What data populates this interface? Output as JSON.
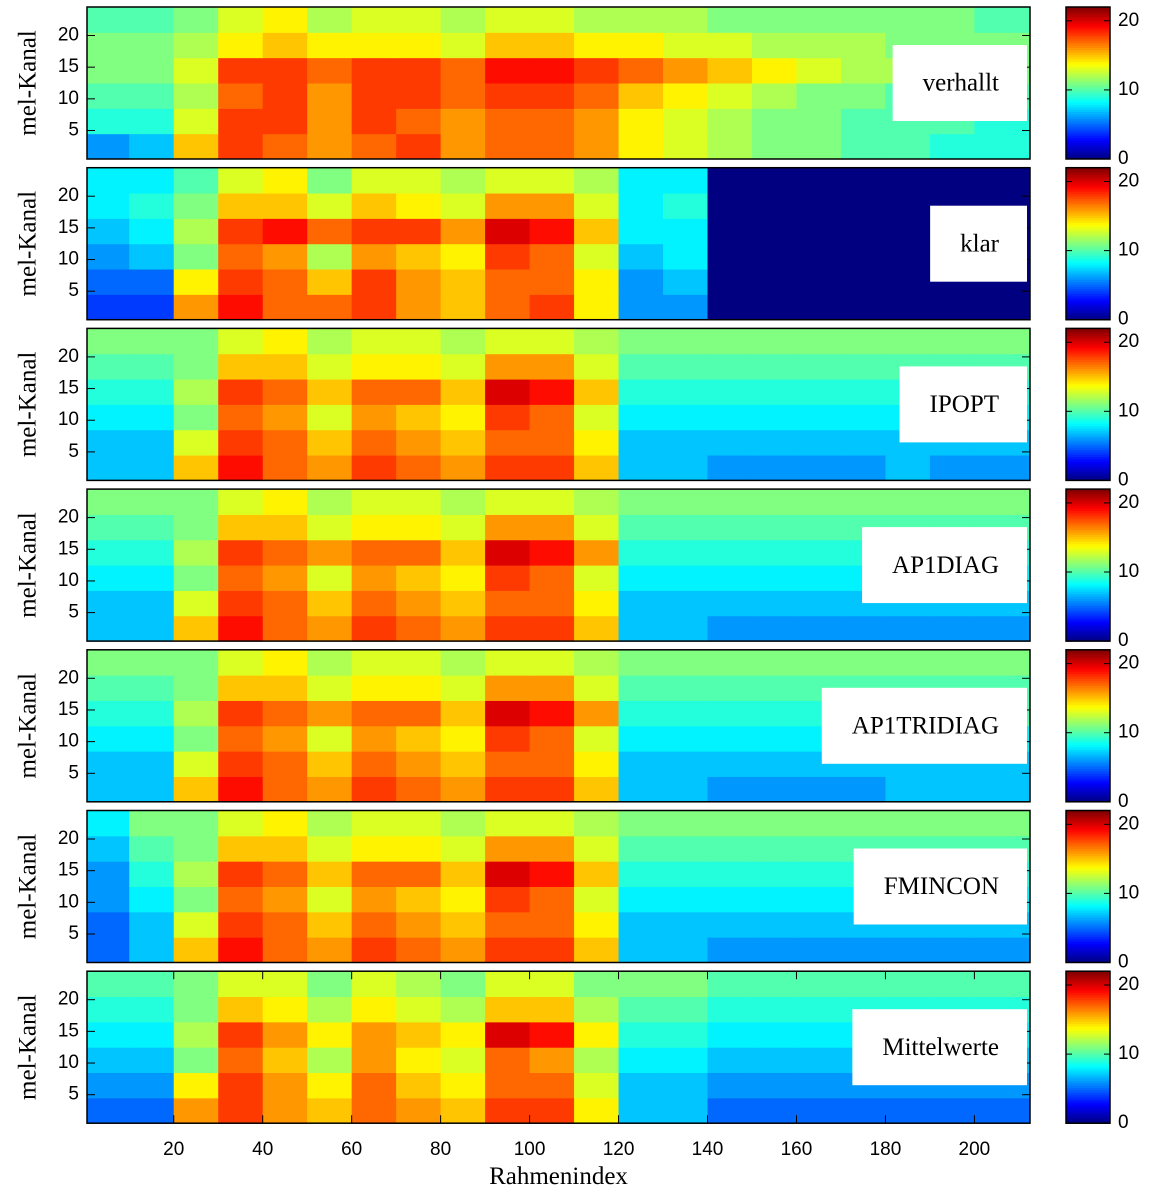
{
  "chart_data": [
    {
      "type": "heatmap",
      "annotation": "verhallt",
      "ylabel": "mel-Kanal",
      "xlim": [
        0.5,
        212.5
      ],
      "ylim": [
        0.5,
        24.5
      ],
      "yticks": [
        5,
        10,
        15,
        20
      ],
      "colormap": "jet",
      "clim": [
        0,
        22
      ],
      "colorbar_ticks": [
        0,
        10,
        20
      ],
      "x_edges": [
        0.5,
        10,
        20,
        30,
        40,
        50,
        60,
        70,
        80,
        90,
        100,
        110,
        120,
        130,
        140,
        150,
        160,
        170,
        180,
        190,
        200,
        212.5
      ],
      "y_edges": [
        0.5,
        4.5,
        8.5,
        12.5,
        16.5,
        20.5,
        24.5
      ],
      "z": [
        [
          6,
          7,
          15,
          18,
          17,
          16,
          17,
          18,
          16,
          17,
          17,
          16,
          14,
          13,
          12,
          11,
          11,
          10,
          10,
          9,
          9
        ],
        [
          9,
          9,
          13,
          18,
          18,
          16,
          18,
          17,
          16,
          17,
          17,
          16,
          14,
          13,
          12,
          11,
          11,
          10,
          10,
          10,
          9
        ],
        [
          10,
          10,
          12,
          17,
          18,
          16,
          18,
          18,
          17,
          18,
          18,
          17,
          15,
          14,
          13,
          12,
          11,
          11,
          10,
          10,
          10
        ],
        [
          11,
          11,
          13,
          18,
          18,
          17,
          18,
          18,
          17,
          19,
          19,
          18,
          17,
          16,
          15,
          14,
          13,
          12,
          12,
          11,
          11
        ],
        [
          11,
          11,
          12,
          14,
          15,
          14,
          14,
          14,
          13,
          15,
          15,
          14,
          14,
          13,
          13,
          12,
          12,
          12,
          11,
          11,
          11
        ],
        [
          10,
          10,
          11,
          13,
          14,
          12,
          13,
          13,
          12,
          13,
          13,
          12,
          12,
          12,
          11,
          11,
          11,
          11,
          11,
          11,
          10
        ]
      ]
    },
    {
      "type": "heatmap",
      "annotation": "klar",
      "ylabel": "mel-Kanal",
      "xlim": [
        0.5,
        212.5
      ],
      "ylim": [
        0.5,
        24.5
      ],
      "yticks": [
        5,
        10,
        15,
        20
      ],
      "colormap": "jet",
      "clim": [
        0,
        22
      ],
      "colorbar_ticks": [
        0,
        10,
        20
      ],
      "x_edges": [
        0.5,
        10,
        20,
        30,
        40,
        50,
        60,
        70,
        80,
        90,
        100,
        110,
        120,
        130,
        140,
        150,
        160,
        170,
        180,
        190,
        200,
        212.5
      ],
      "y_edges": [
        0.5,
        4.5,
        8.5,
        12.5,
        16.5,
        20.5,
        24.5
      ],
      "z": [
        [
          4,
          4,
          16,
          19,
          17,
          17,
          18,
          16,
          15,
          17,
          18,
          14,
          6,
          6,
          0,
          0,
          0,
          0,
          0,
          0,
          0
        ],
        [
          5,
          5,
          14,
          18,
          17,
          15,
          18,
          16,
          15,
          17,
          17,
          14,
          6,
          7,
          0,
          0,
          0,
          0,
          0,
          0,
          0
        ],
        [
          6,
          7,
          11,
          17,
          16,
          12,
          16,
          15,
          14,
          18,
          17,
          13,
          7,
          8,
          0,
          0,
          0,
          0,
          0,
          0,
          0
        ],
        [
          7,
          8,
          12,
          18,
          19,
          17,
          18,
          18,
          16,
          20,
          19,
          15,
          8,
          8,
          0,
          0,
          0,
          0,
          0,
          0,
          0
        ],
        [
          8,
          9,
          11,
          15,
          15,
          13,
          15,
          14,
          13,
          16,
          16,
          13,
          8,
          9,
          0,
          0,
          0,
          0,
          0,
          0,
          0
        ],
        [
          8,
          8,
          10,
          13,
          14,
          11,
          13,
          13,
          12,
          13,
          13,
          12,
          8,
          8,
          0,
          0,
          0,
          0,
          0,
          0,
          0
        ]
      ]
    },
    {
      "type": "heatmap",
      "annotation": "IPOPT",
      "ylabel": "mel-Kanal",
      "xlim": [
        0.5,
        212.5
      ],
      "ylim": [
        0.5,
        24.5
      ],
      "yticks": [
        5,
        10,
        15,
        20
      ],
      "colormap": "jet",
      "clim": [
        0,
        22
      ],
      "colorbar_ticks": [
        0,
        10,
        20
      ],
      "x_edges": [
        0.5,
        10,
        20,
        30,
        40,
        50,
        60,
        70,
        80,
        90,
        100,
        110,
        120,
        130,
        140,
        150,
        160,
        170,
        180,
        190,
        200,
        212.5
      ],
      "y_edges": [
        0.5,
        4.5,
        8.5,
        12.5,
        16.5,
        20.5,
        24.5
      ],
      "z": [
        [
          7,
          7,
          15,
          19,
          17,
          16,
          18,
          17,
          16,
          18,
          18,
          15,
          7,
          7,
          6,
          6,
          6,
          6,
          7,
          6,
          6
        ],
        [
          7,
          7,
          13,
          18,
          17,
          15,
          17,
          16,
          15,
          17,
          17,
          14,
          7,
          7,
          7,
          7,
          7,
          7,
          7,
          7,
          7
        ],
        [
          8,
          8,
          11,
          17,
          16,
          13,
          16,
          15,
          14,
          18,
          17,
          13,
          8,
          8,
          8,
          8,
          8,
          8,
          8,
          8,
          8
        ],
        [
          9,
          9,
          12,
          18,
          17,
          15,
          17,
          17,
          15,
          20,
          19,
          15,
          9,
          9,
          9,
          9,
          9,
          9,
          9,
          9,
          9
        ],
        [
          10,
          10,
          11,
          15,
          15,
          13,
          14,
          14,
          13,
          16,
          16,
          13,
          10,
          10,
          10,
          10,
          10,
          10,
          10,
          10,
          10
        ],
        [
          11,
          11,
          11,
          13,
          14,
          12,
          13,
          13,
          12,
          13,
          13,
          12,
          11,
          11,
          11,
          11,
          11,
          11,
          11,
          11,
          11
        ]
      ]
    },
    {
      "type": "heatmap",
      "annotation": "AP1DIAG",
      "ylabel": "mel-Kanal",
      "xlim": [
        0.5,
        212.5
      ],
      "ylim": [
        0.5,
        24.5
      ],
      "yticks": [
        5,
        10,
        15,
        20
      ],
      "colormap": "jet",
      "clim": [
        0,
        22
      ],
      "colorbar_ticks": [
        0,
        10,
        20
      ],
      "x_edges": [
        0.5,
        10,
        20,
        30,
        40,
        50,
        60,
        70,
        80,
        90,
        100,
        110,
        120,
        130,
        140,
        150,
        160,
        170,
        180,
        190,
        200,
        212.5
      ],
      "y_edges": [
        0.5,
        4.5,
        8.5,
        12.5,
        16.5,
        20.5,
        24.5
      ],
      "z": [
        [
          7,
          7,
          15,
          19,
          17,
          16,
          18,
          17,
          16,
          18,
          18,
          15,
          7,
          7,
          6,
          6,
          6,
          6,
          6,
          6,
          6
        ],
        [
          7,
          7,
          13,
          18,
          17,
          15,
          17,
          16,
          15,
          17,
          17,
          14,
          7,
          7,
          7,
          7,
          7,
          7,
          7,
          7,
          7
        ],
        [
          8,
          8,
          11,
          17,
          16,
          13,
          16,
          15,
          14,
          18,
          17,
          13,
          8,
          8,
          8,
          8,
          8,
          8,
          8,
          8,
          8
        ],
        [
          9,
          9,
          12,
          18,
          17,
          16,
          17,
          17,
          15,
          20,
          19,
          16,
          9,
          9,
          9,
          9,
          9,
          9,
          9,
          9,
          9
        ],
        [
          10,
          10,
          11,
          15,
          15,
          13,
          14,
          14,
          13,
          16,
          16,
          13,
          10,
          10,
          10,
          10,
          10,
          10,
          10,
          10,
          10
        ],
        [
          11,
          11,
          11,
          13,
          14,
          12,
          13,
          13,
          12,
          13,
          13,
          12,
          11,
          11,
          11,
          11,
          11,
          11,
          11,
          11,
          11
        ]
      ]
    },
    {
      "type": "heatmap",
      "annotation": "AP1TRIDIAG",
      "ylabel": "mel-Kanal",
      "xlim": [
        0.5,
        212.5
      ],
      "ylim": [
        0.5,
        24.5
      ],
      "yticks": [
        5,
        10,
        15,
        20
      ],
      "colormap": "jet",
      "clim": [
        0,
        22
      ],
      "colorbar_ticks": [
        0,
        10,
        20
      ],
      "x_edges": [
        0.5,
        10,
        20,
        30,
        40,
        50,
        60,
        70,
        80,
        90,
        100,
        110,
        120,
        130,
        140,
        150,
        160,
        170,
        180,
        190,
        200,
        212.5
      ],
      "y_edges": [
        0.5,
        4.5,
        8.5,
        12.5,
        16.5,
        20.5,
        24.5
      ],
      "z": [
        [
          7,
          7,
          15,
          19,
          17,
          16,
          18,
          17,
          16,
          18,
          18,
          15,
          7,
          7,
          6,
          6,
          6,
          6,
          7,
          7,
          7
        ],
        [
          7,
          7,
          13,
          18,
          17,
          15,
          17,
          16,
          15,
          17,
          17,
          14,
          7,
          7,
          7,
          7,
          7,
          7,
          7,
          7,
          7
        ],
        [
          8,
          8,
          11,
          17,
          16,
          13,
          16,
          15,
          14,
          18,
          17,
          13,
          8,
          8,
          8,
          8,
          8,
          8,
          8,
          8,
          8
        ],
        [
          9,
          9,
          12,
          18,
          17,
          16,
          17,
          17,
          15,
          20,
          19,
          16,
          9,
          9,
          9,
          9,
          9,
          9,
          10,
          10,
          10
        ],
        [
          10,
          10,
          11,
          15,
          15,
          13,
          14,
          14,
          13,
          16,
          16,
          13,
          10,
          10,
          10,
          10,
          10,
          10,
          10,
          10,
          10
        ],
        [
          11,
          11,
          11,
          13,
          14,
          12,
          13,
          13,
          12,
          13,
          13,
          12,
          11,
          11,
          11,
          11,
          11,
          11,
          11,
          11,
          11
        ]
      ]
    },
    {
      "type": "heatmap",
      "annotation": "FMINCON",
      "ylabel": "mel-Kanal",
      "xlim": [
        0.5,
        212.5
      ],
      "ylim": [
        0.5,
        24.5
      ],
      "yticks": [
        5,
        10,
        15,
        20
      ],
      "colormap": "jet",
      "clim": [
        0,
        22
      ],
      "colorbar_ticks": [
        0,
        10,
        20
      ],
      "x_edges": [
        0.5,
        10,
        20,
        30,
        40,
        50,
        60,
        70,
        80,
        90,
        100,
        110,
        120,
        130,
        140,
        150,
        160,
        170,
        180,
        190,
        200,
        212.5
      ],
      "y_edges": [
        0.5,
        4.5,
        8.5,
        12.5,
        16.5,
        20.5,
        24.5
      ],
      "z": [
        [
          5,
          7,
          15,
          19,
          17,
          16,
          18,
          17,
          16,
          18,
          18,
          15,
          7,
          7,
          6,
          6,
          6,
          6,
          6,
          6,
          6
        ],
        [
          5,
          7,
          13,
          18,
          17,
          15,
          17,
          16,
          15,
          17,
          17,
          14,
          7,
          7,
          7,
          7,
          7,
          7,
          7,
          7,
          7
        ],
        [
          6,
          8,
          11,
          17,
          16,
          13,
          16,
          15,
          14,
          18,
          17,
          13,
          8,
          8,
          8,
          8,
          8,
          8,
          8,
          8,
          8
        ],
        [
          6,
          9,
          12,
          18,
          17,
          15,
          17,
          17,
          15,
          20,
          19,
          15,
          9,
          9,
          9,
          9,
          9,
          9,
          9,
          9,
          9
        ],
        [
          7,
          10,
          11,
          15,
          15,
          13,
          14,
          14,
          13,
          16,
          16,
          13,
          10,
          10,
          10,
          10,
          10,
          10,
          10,
          10,
          10
        ],
        [
          8,
          11,
          11,
          13,
          14,
          12,
          13,
          13,
          12,
          13,
          13,
          12,
          11,
          11,
          11,
          11,
          11,
          11,
          11,
          11,
          11
        ]
      ]
    },
    {
      "type": "heatmap",
      "annotation": "Mittelwerte",
      "ylabel": "mel-Kanal",
      "xlabel": "Rahmenindex",
      "xlim": [
        0.5,
        212.5
      ],
      "ylim": [
        0.5,
        24.5
      ],
      "xticks": [
        20,
        40,
        60,
        80,
        100,
        120,
        140,
        160,
        180,
        200
      ],
      "yticks": [
        5,
        10,
        15,
        20
      ],
      "colormap": "jet",
      "clim": [
        0,
        22
      ],
      "colorbar_ticks": [
        0,
        10,
        20
      ],
      "x_edges": [
        0.5,
        10,
        20,
        30,
        40,
        50,
        60,
        70,
        80,
        90,
        100,
        110,
        120,
        130,
        140,
        150,
        160,
        170,
        180,
        190,
        200,
        212.5
      ],
      "y_edges": [
        0.5,
        4.5,
        8.5,
        12.5,
        16.5,
        20.5,
        24.5
      ],
      "z": [
        [
          5,
          5,
          16,
          18,
          16,
          15,
          17,
          16,
          15,
          18,
          18,
          14,
          7,
          7,
          5,
          5,
          5,
          5,
          5,
          5,
          5
        ],
        [
          6,
          6,
          14,
          18,
          16,
          14,
          17,
          15,
          14,
          17,
          17,
          13,
          7,
          7,
          6,
          6,
          6,
          6,
          6,
          6,
          6
        ],
        [
          7,
          7,
          11,
          17,
          15,
          12,
          16,
          14,
          13,
          17,
          16,
          12,
          8,
          8,
          7,
          7,
          7,
          7,
          7,
          7,
          7
        ],
        [
          8,
          8,
          12,
          18,
          16,
          14,
          16,
          15,
          14,
          20,
          19,
          14,
          9,
          9,
          8,
          8,
          8,
          8,
          8,
          8,
          8
        ],
        [
          9,
          9,
          11,
          15,
          14,
          12,
          14,
          13,
          12,
          15,
          15,
          12,
          10,
          10,
          9,
          9,
          9,
          9,
          9,
          9,
          9
        ],
        [
          10,
          10,
          11,
          13,
          13,
          11,
          13,
          12,
          11,
          13,
          13,
          11,
          11,
          11,
          10,
          10,
          10,
          10,
          10,
          10,
          10
        ]
      ]
    }
  ]
}
